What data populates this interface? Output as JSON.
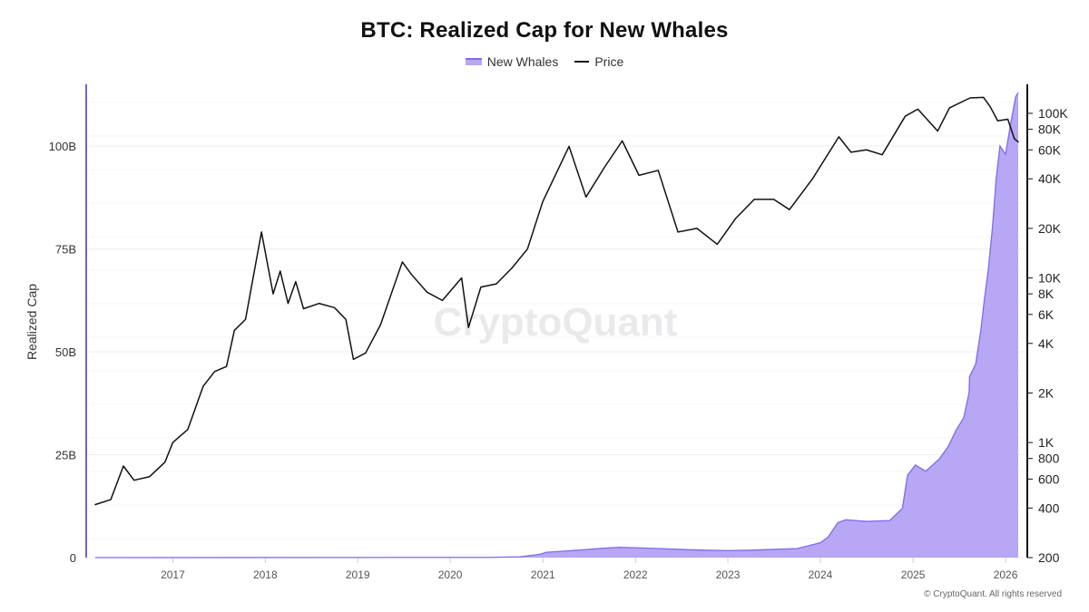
{
  "chart_data": {
    "type": "area",
    "title": "BTC: Realized Cap for New Whales",
    "legend": {
      "placement": "top-center"
    },
    "watermark": "CryptoQuant",
    "footer": "© CryptoQuant. All rights reserved",
    "colors": {
      "new_whales_fill": "#b7a7f5",
      "new_whales_line": "#7e6ce8",
      "price_line": "#111111",
      "left_axis": "#6f62d9",
      "right_axis": "#111111"
    },
    "x_axis": {
      "range": [
        "2016-03-01",
        "2026-02-20"
      ],
      "ticks": [
        "2017",
        "2018",
        "2019",
        "2020",
        "2021",
        "2022",
        "2023",
        "2024",
        "2025",
        "2026"
      ]
    },
    "y_left": {
      "label": "Realized Cap",
      "range": [
        0,
        115
      ],
      "ticks": [
        0,
        25,
        50,
        75,
        100
      ],
      "tick_labels": [
        "0",
        "25B",
        "50B",
        "75B",
        "100B"
      ]
    },
    "y_right": {
      "scale": "log",
      "range": [
        200,
        150000
      ],
      "ticks": [
        200,
        400,
        600,
        800,
        1000,
        2000,
        4000,
        6000,
        8000,
        10000,
        20000,
        40000,
        60000,
        80000,
        100000
      ],
      "tick_labels": [
        "200",
        "400",
        "600",
        "800",
        "1K",
        "2K",
        "4K",
        "6K",
        "8K",
        "10K",
        "20K",
        "40K",
        "60K",
        "80K",
        "100K"
      ]
    },
    "grid": "horizontal",
    "series": [
      {
        "name": "New Whales",
        "axis": "left",
        "kind": "area",
        "points": [
          [
            "2016-03-01",
            0
          ],
          [
            "2020-06-01",
            0.05
          ],
          [
            "2020-10-01",
            0.2
          ],
          [
            "2020-12-20",
            0.8
          ],
          [
            "2021-01-15",
            1.3
          ],
          [
            "2021-04-01",
            1.6
          ],
          [
            "2021-07-01",
            2.0
          ],
          [
            "2021-09-01",
            2.3
          ],
          [
            "2021-11-01",
            2.5
          ],
          [
            "2022-01-01",
            2.4
          ],
          [
            "2022-04-01",
            2.2
          ],
          [
            "2022-07-01",
            2.0
          ],
          [
            "2022-10-01",
            1.8
          ],
          [
            "2023-01-01",
            1.7
          ],
          [
            "2023-04-01",
            1.8
          ],
          [
            "2023-07-01",
            2.0
          ],
          [
            "2023-10-01",
            2.2
          ],
          [
            "2024-01-01",
            3.6
          ],
          [
            "2024-02-01",
            5.0
          ],
          [
            "2024-03-10",
            8.5
          ],
          [
            "2024-04-10",
            9.2
          ],
          [
            "2024-07-01",
            8.8
          ],
          [
            "2024-10-01",
            9.0
          ],
          [
            "2024-11-20",
            12.0
          ],
          [
            "2024-12-10",
            20.0
          ],
          [
            "2025-01-10",
            22.5
          ],
          [
            "2025-02-20",
            21.0
          ],
          [
            "2025-04-15",
            24.0
          ],
          [
            "2025-05-20",
            27.0
          ],
          [
            "2025-06-20",
            31.0
          ],
          [
            "2025-07-20",
            34.0
          ],
          [
            "2025-08-10",
            40.0
          ],
          [
            "2025-08-12",
            44.0
          ],
          [
            "2025-09-05",
            47.0
          ],
          [
            "2025-09-25",
            55.0
          ],
          [
            "2025-10-10",
            63.0
          ],
          [
            "2025-10-25",
            70.0
          ],
          [
            "2025-11-10",
            80.0
          ],
          [
            "2025-11-25",
            92.0
          ],
          [
            "2025-12-10",
            100.0
          ],
          [
            "2026-01-01",
            98.0
          ],
          [
            "2026-01-20",
            105.0
          ],
          [
            "2026-02-10",
            112.0
          ],
          [
            "2026-02-20",
            113.0
          ]
        ]
      },
      {
        "name": "Price",
        "axis": "right",
        "kind": "line",
        "points": [
          [
            "2016-03-01",
            420
          ],
          [
            "2016-05-01",
            450
          ],
          [
            "2016-06-20",
            720
          ],
          [
            "2016-08-01",
            590
          ],
          [
            "2016-10-01",
            620
          ],
          [
            "2016-12-01",
            760
          ],
          [
            "2017-01-01",
            1000
          ],
          [
            "2017-03-01",
            1200
          ],
          [
            "2017-05-01",
            2200
          ],
          [
            "2017-06-15",
            2700
          ],
          [
            "2017-08-01",
            2900
          ],
          [
            "2017-09-01",
            4800
          ],
          [
            "2017-10-15",
            5600
          ],
          [
            "2017-12-17",
            19000
          ],
          [
            "2018-02-01",
            8000
          ],
          [
            "2018-03-01",
            11000
          ],
          [
            "2018-04-01",
            7000
          ],
          [
            "2018-05-01",
            9500
          ],
          [
            "2018-06-01",
            6500
          ],
          [
            "2018-08-01",
            7000
          ],
          [
            "2018-10-01",
            6600
          ],
          [
            "2018-11-15",
            5600
          ],
          [
            "2018-12-15",
            3200
          ],
          [
            "2019-02-01",
            3500
          ],
          [
            "2019-04-01",
            5200
          ],
          [
            "2019-06-26",
            12500
          ],
          [
            "2019-08-01",
            10500
          ],
          [
            "2019-10-01",
            8200
          ],
          [
            "2019-12-01",
            7300
          ],
          [
            "2020-02-15",
            10000
          ],
          [
            "2020-03-13",
            5000
          ],
          [
            "2020-05-01",
            8800
          ],
          [
            "2020-07-01",
            9200
          ],
          [
            "2020-09-01",
            11500
          ],
          [
            "2020-11-01",
            15000
          ],
          [
            "2020-12-31",
            29000
          ],
          [
            "2021-04-14",
            63000
          ],
          [
            "2021-06-20",
            31000
          ],
          [
            "2021-09-01",
            47000
          ],
          [
            "2021-11-10",
            68000
          ],
          [
            "2022-01-15",
            42000
          ],
          [
            "2022-04-01",
            45000
          ],
          [
            "2022-06-18",
            19000
          ],
          [
            "2022-09-01",
            20000
          ],
          [
            "2022-11-20",
            16000
          ],
          [
            "2023-02-01",
            23000
          ],
          [
            "2023-04-15",
            30000
          ],
          [
            "2023-07-01",
            30000
          ],
          [
            "2023-09-01",
            26000
          ],
          [
            "2023-12-01",
            40000
          ],
          [
            "2024-03-14",
            72000
          ],
          [
            "2024-05-01",
            58000
          ],
          [
            "2024-07-01",
            60000
          ],
          [
            "2024-09-01",
            56000
          ],
          [
            "2024-12-01",
            96000
          ],
          [
            "2025-01-20",
            106000
          ],
          [
            "2025-04-08",
            78000
          ],
          [
            "2025-05-25",
            108000
          ],
          [
            "2025-08-14",
            124000
          ],
          [
            "2025-10-06",
            125000
          ],
          [
            "2025-11-01",
            110000
          ],
          [
            "2025-12-01",
            90000
          ],
          [
            "2026-01-10",
            92000
          ],
          [
            "2026-02-05",
            70000
          ],
          [
            "2026-02-20",
            67000
          ]
        ]
      }
    ]
  }
}
